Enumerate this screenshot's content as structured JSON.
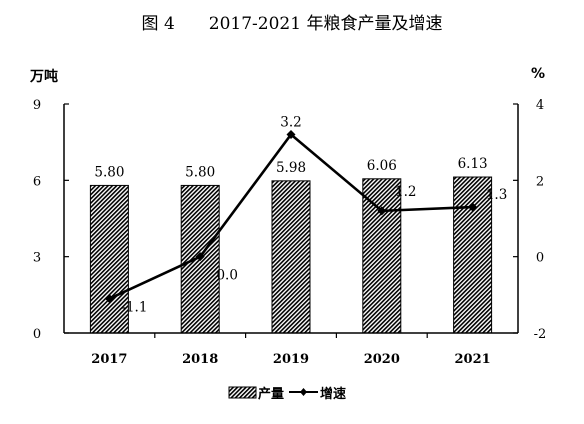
{
  "chart_data": {
    "type": "bar",
    "title": "图 4　　2017-2021 年粮食产量及增速",
    "categories": [
      "2017",
      "2018",
      "2019",
      "2020",
      "2021"
    ],
    "left_axis": {
      "unit": "万吨",
      "ticks": [
        "0",
        "3",
        "6",
        "9"
      ],
      "ylim": [
        0,
        9
      ]
    },
    "right_axis": {
      "unit": "%",
      "ticks": [
        "-2",
        "0",
        "2",
        "4"
      ],
      "ylim": [
        -2,
        4
      ]
    },
    "series": [
      {
        "name": "产量",
        "type": "bar",
        "axis": "left",
        "values": [
          5.8,
          5.8,
          5.98,
          6.06,
          6.13
        ],
        "labels": [
          "5.80",
          "5.80",
          "5.98",
          "6.06",
          "6.13"
        ]
      },
      {
        "name": "增速",
        "type": "line",
        "axis": "right",
        "values": [
          -1.1,
          0.0,
          3.2,
          1.2,
          1.3
        ],
        "labels": [
          "-1.1",
          "0.0",
          "3.2",
          "1.2",
          "1.3"
        ]
      }
    ],
    "legend_position": "bottom",
    "grid": false
  }
}
